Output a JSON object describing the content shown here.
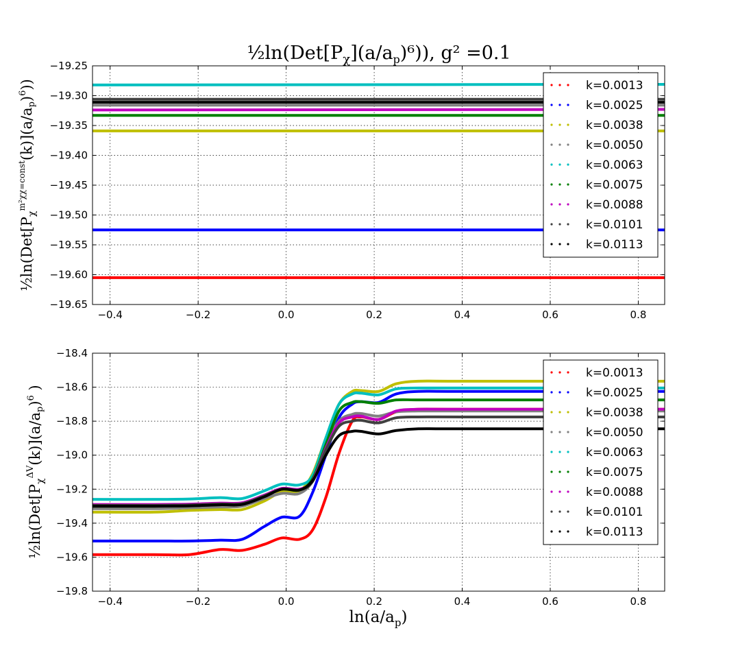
{
  "figure": {
    "title_main": "½ln(Det[P",
    "title_sub": "χ",
    "title_rest": "](a/a",
    "title_p": "p",
    "title_end": ")⁶)),  g² =0.1"
  },
  "colors": {
    "k=0.0013": "#ff0000",
    "k=0.0025": "#0000ff",
    "k=0.0038": "#bfbf00",
    "k=0.0050": "#808080",
    "k=0.0063": "#00bfbf",
    "k=0.0075": "#008000",
    "k=0.0088": "#bf00bf",
    "k=0.0101": "#404040",
    "k=0.0113": "#000000"
  },
  "chart_data": [
    {
      "type": "line",
      "title": "½ln(Det[Pχ](a/ap)⁶)),  g² =0.1",
      "xlabel": "",
      "ylabel": "½ln(Det[Pχ^{mχχ²=const}(k)](a/ap)⁶))",
      "xlim": [
        -0.44,
        0.86
      ],
      "ylim": [
        -19.65,
        -19.25
      ],
      "xticks": [
        "−0.4",
        "−0.2",
        "0.0",
        "0.2",
        "0.4",
        "0.6",
        "0.8"
      ],
      "yticks": [
        "−19.25",
        "−19.30",
        "−19.35",
        "−19.40",
        "−19.45",
        "−19.50",
        "−19.55",
        "−19.60",
        "−19.65"
      ],
      "grid": true,
      "legend_position": "top-right",
      "series": [
        {
          "name": "k=0.0013",
          "values": [
            -19.605,
            -19.605
          ]
        },
        {
          "name": "k=0.0025",
          "values": [
            -19.525,
            -19.525
          ]
        },
        {
          "name": "k=0.0038",
          "values": [
            -19.359,
            -19.359
          ]
        },
        {
          "name": "k=0.0050",
          "values": [
            -19.316,
            -19.316
          ]
        },
        {
          "name": "k=0.0063",
          "values": [
            -19.282,
            -19.281
          ]
        },
        {
          "name": "k=0.0075",
          "values": [
            -19.333,
            -19.333
          ]
        },
        {
          "name": "k=0.0088",
          "values": [
            -19.324,
            -19.323
          ]
        },
        {
          "name": "k=0.0101",
          "values": [
            -19.306,
            -19.306
          ]
        },
        {
          "name": "k=0.0113",
          "values": [
            -19.311,
            -19.311
          ]
        }
      ],
      "x": [
        -0.44,
        0.86
      ]
    },
    {
      "type": "line",
      "title": "",
      "xlabel": "ln(a/ap)",
      "ylabel": "½ln(Det[Pχ^{ΔV}(k)](a/ap)⁶ )",
      "xlim": [
        -0.44,
        0.86
      ],
      "ylim": [
        -19.8,
        -18.4
      ],
      "xticks": [
        "−0.4",
        "−0.2",
        "0.0",
        "0.2",
        "0.4",
        "0.6",
        "0.8"
      ],
      "yticks": [
        "−18.4",
        "−18.6",
        "−18.8",
        "−19.0",
        "−19.2",
        "−19.4",
        "−19.6",
        "−19.8"
      ],
      "grid": true,
      "legend_position": "top-right",
      "x": [
        -0.44,
        -0.3,
        -0.22,
        -0.15,
        -0.1,
        -0.05,
        -0.01,
        0.03,
        0.06,
        0.09,
        0.12,
        0.15,
        0.17,
        0.21,
        0.25,
        0.3,
        0.4,
        0.86
      ],
      "series": [
        {
          "name": "k=0.0013",
          "values": [
            -19.585,
            -19.585,
            -19.585,
            -19.555,
            -19.56,
            -19.525,
            -19.487,
            -19.495,
            -19.44,
            -19.25,
            -18.99,
            -18.8,
            -18.775,
            -18.79,
            -18.745,
            -18.73,
            -18.73,
            -18.73
          ]
        },
        {
          "name": "k=0.0025",
          "values": [
            -19.505,
            -19.505,
            -19.505,
            -19.5,
            -19.495,
            -19.42,
            -19.365,
            -19.36,
            -19.22,
            -19.0,
            -18.78,
            -18.7,
            -18.685,
            -18.69,
            -18.64,
            -18.625,
            -18.625,
            -18.625
          ]
        },
        {
          "name": "k=0.0038",
          "values": [
            -19.335,
            -19.335,
            -19.325,
            -19.32,
            -19.32,
            -19.27,
            -19.215,
            -19.21,
            -19.11,
            -18.9,
            -18.7,
            -18.625,
            -18.62,
            -18.625,
            -18.58,
            -18.565,
            -18.565,
            -18.565
          ]
        },
        {
          "name": "k=0.0050",
          "values": [
            -19.315,
            -19.315,
            -19.31,
            -19.305,
            -19.3,
            -19.255,
            -19.225,
            -19.225,
            -19.15,
            -18.95,
            -18.8,
            -18.76,
            -18.755,
            -18.77,
            -18.745,
            -18.74,
            -18.74,
            -18.74
          ]
        },
        {
          "name": "k=0.0063",
          "values": [
            -19.26,
            -19.26,
            -19.258,
            -19.25,
            -19.255,
            -19.21,
            -19.17,
            -19.175,
            -19.12,
            -18.9,
            -18.7,
            -18.64,
            -18.635,
            -18.645,
            -18.61,
            -18.605,
            -18.605,
            -18.605
          ]
        },
        {
          "name": "k=0.0075",
          "values": [
            -19.3,
            -19.3,
            -19.298,
            -19.29,
            -19.285,
            -19.24,
            -19.2,
            -19.205,
            -19.14,
            -18.94,
            -18.74,
            -18.69,
            -18.685,
            -18.695,
            -18.675,
            -18.675,
            -18.675,
            -18.675
          ]
        },
        {
          "name": "k=0.0088",
          "values": [
            -19.29,
            -19.29,
            -19.288,
            -19.282,
            -19.28,
            -19.235,
            -19.195,
            -19.2,
            -19.15,
            -18.96,
            -18.81,
            -18.775,
            -18.77,
            -18.79,
            -18.74,
            -18.73,
            -18.73,
            -18.73
          ]
        },
        {
          "name": "k=0.0101",
          "values": [
            -19.295,
            -19.295,
            -19.293,
            -19.287,
            -19.285,
            -19.24,
            -19.2,
            -19.205,
            -19.155,
            -18.97,
            -18.83,
            -18.8,
            -18.795,
            -18.81,
            -18.78,
            -18.775,
            -18.775,
            -18.775
          ]
        },
        {
          "name": "k=0.0113",
          "values": [
            -19.3,
            -19.3,
            -19.298,
            -19.292,
            -19.29,
            -19.245,
            -19.2,
            -19.205,
            -19.15,
            -19.0,
            -18.885,
            -18.86,
            -18.86,
            -18.875,
            -18.855,
            -18.845,
            -18.845,
            -18.845
          ]
        }
      ]
    }
  ]
}
